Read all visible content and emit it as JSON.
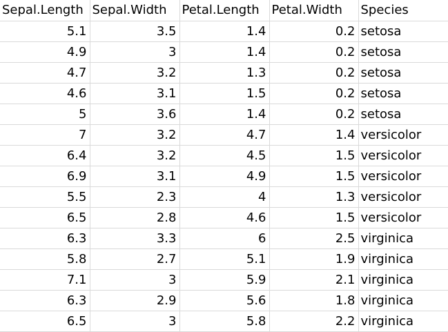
{
  "sheet": {
    "headers": [
      "Sepal.Length",
      "Sepal.Width",
      "Petal.Length",
      "Petal.Width",
      "Species"
    ],
    "rows": [
      [
        "5.1",
        "3.5",
        "1.4",
        "0.2",
        "setosa"
      ],
      [
        "4.9",
        "3",
        "1.4",
        "0.2",
        "setosa"
      ],
      [
        "4.7",
        "3.2",
        "1.3",
        "0.2",
        "setosa"
      ],
      [
        "4.6",
        "3.1",
        "1.5",
        "0.2",
        "setosa"
      ],
      [
        "5",
        "3.6",
        "1.4",
        "0.2",
        "setosa"
      ],
      [
        "7",
        "3.2",
        "4.7",
        "1.4",
        "versicolor"
      ],
      [
        "6.4",
        "3.2",
        "4.5",
        "1.5",
        "versicolor"
      ],
      [
        "6.9",
        "3.1",
        "4.9",
        "1.5",
        "versicolor"
      ],
      [
        "5.5",
        "2.3",
        "4",
        "1.3",
        "versicolor"
      ],
      [
        "6.5",
        "2.8",
        "4.6",
        "1.5",
        "versicolor"
      ],
      [
        "6.3",
        "3.3",
        "6",
        "2.5",
        "virginica"
      ],
      [
        "5.8",
        "2.7",
        "5.1",
        "1.9",
        "virginica"
      ],
      [
        "7.1",
        "3",
        "5.9",
        "2.1",
        "virginica"
      ],
      [
        "6.3",
        "2.9",
        "5.6",
        "1.8",
        "virginica"
      ],
      [
        "6.5",
        "3",
        "5.8",
        "2.2",
        "virginica"
      ]
    ]
  }
}
